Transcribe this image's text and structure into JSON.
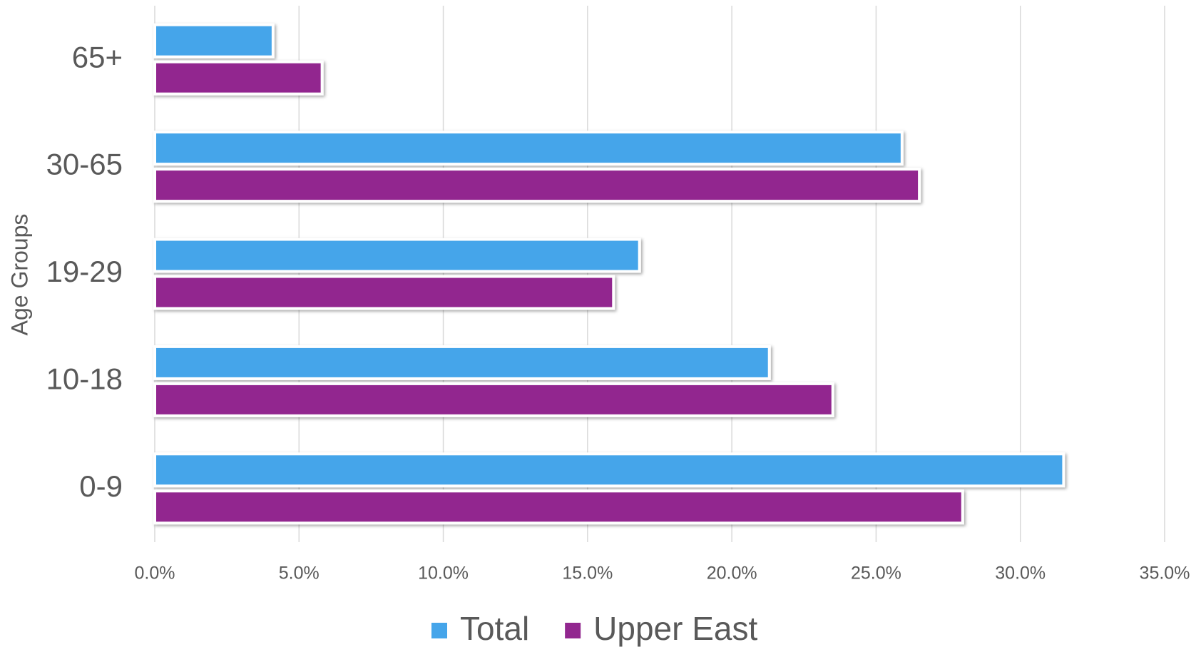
{
  "chart_data": {
    "type": "barh",
    "y_axis_label": "Age Groups",
    "categories": [
      "65+",
      "30-65",
      "19-29",
      "10-18",
      "0-9"
    ],
    "series": [
      {
        "name": "Total",
        "color": "#45a5ea",
        "values": [
          4.1,
          25.9,
          16.8,
          21.3,
          31.5
        ]
      },
      {
        "name": "Upper East",
        "color": "#92278f",
        "values": [
          5.8,
          26.5,
          15.9,
          23.5,
          28.0
        ]
      }
    ],
    "xlim": [
      0,
      35
    ],
    "xticks": [
      {
        "value": 0,
        "label": "0.0%"
      },
      {
        "value": 5,
        "label": "5.0%"
      },
      {
        "value": 10,
        "label": "10.0%"
      },
      {
        "value": 15,
        "label": "15.0%"
      },
      {
        "value": 20,
        "label": "20.0%"
      },
      {
        "value": 25,
        "label": "25.0%"
      },
      {
        "value": 30,
        "label": "30.0%"
      },
      {
        "value": 35,
        "label": "35.0%"
      }
    ],
    "grid": true,
    "legend": "bottom"
  }
}
